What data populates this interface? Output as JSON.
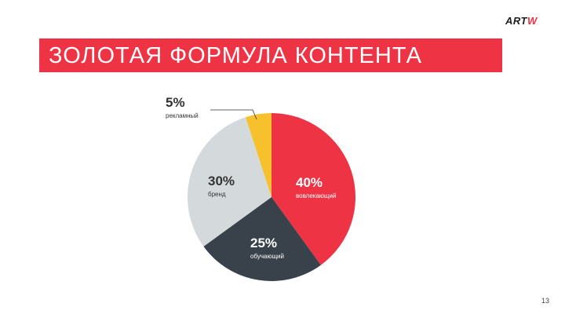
{
  "header": {
    "title": "ЗОЛОТАЯ ФОРМУЛА КОНТЕНТА",
    "logo_part1": "ART",
    "logo_part2": "W"
  },
  "page_number": "13",
  "colors": {
    "accent": "#ee3344",
    "dark": "#39424a",
    "gray": "#d4d9dc",
    "yellow": "#f7c12e"
  },
  "chart_data": {
    "type": "pie",
    "title": "",
    "slices": [
      {
        "label": "вовлекающий",
        "value": 40,
        "display": "40%",
        "color": "#ee3344"
      },
      {
        "label": "обучающий",
        "value": 25,
        "display": "25%",
        "color": "#39424a"
      },
      {
        "label": "бренд",
        "value": 30,
        "display": "30%",
        "color": "#d4d9dc"
      },
      {
        "label": "рекламный",
        "value": 5,
        "display": "5%",
        "color": "#f7c12e"
      }
    ]
  }
}
